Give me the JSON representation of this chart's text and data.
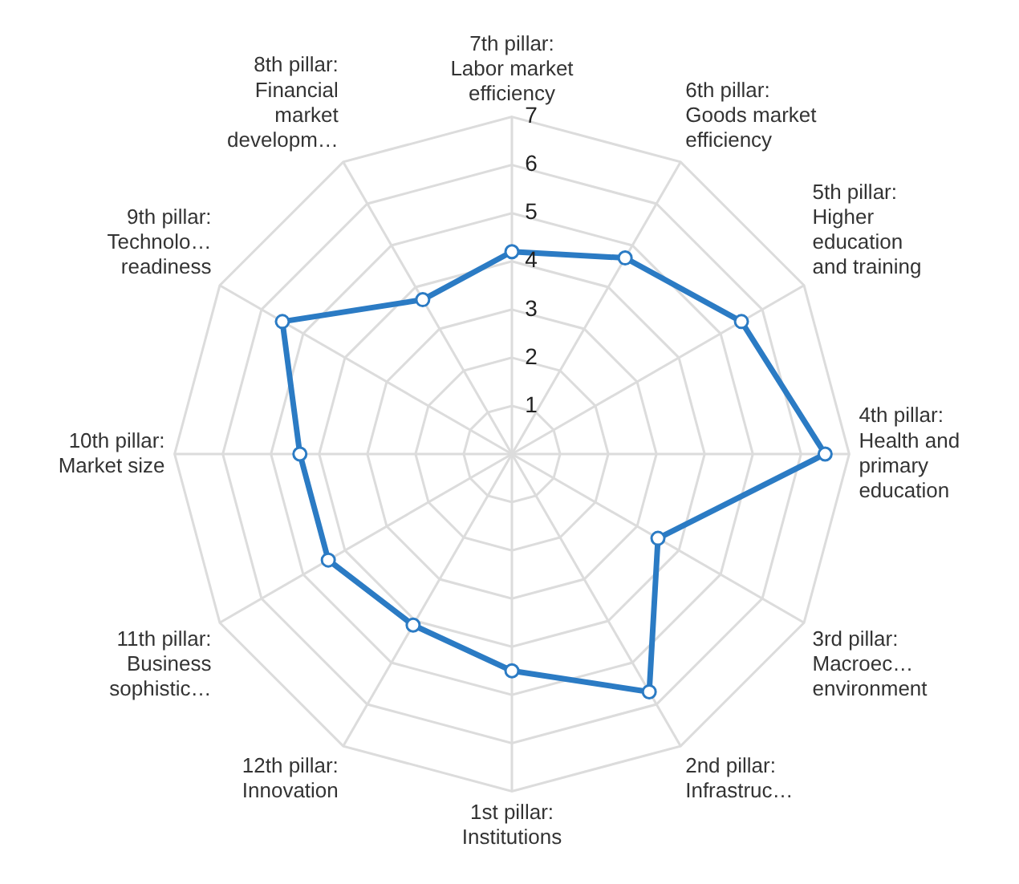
{
  "chart_data": {
    "type": "radar",
    "categories": [
      "7th pillar: Labor market efficiency",
      "6th pillar: Goods market efficiency",
      "5th pillar: Higher education and training",
      "4th pillar: Health and primary education",
      "3rd pillar: Macroec… environment",
      "2nd pillar: Infrastruc…",
      "1st pillar: Institutions",
      "12th pillar: Innovation",
      "11th pillar: Business sophistic…",
      "10th pillar: Market size",
      "9th pillar: Technolo… readiness",
      "8th pillar: Financial market developm…"
    ],
    "series": [
      {
        "color": "#2b7bc4",
        "values": [
          4.2,
          4.7,
          5.5,
          6.5,
          3.5,
          5.7,
          4.5,
          4.1,
          4.4,
          4.4,
          5.5,
          3.7
        ]
      }
    ],
    "ylim": [
      0,
      7
    ],
    "yticks": [
      1,
      2,
      3,
      4,
      5,
      6,
      7
    ],
    "grid": true,
    "legend": false,
    "marker": "circle"
  }
}
